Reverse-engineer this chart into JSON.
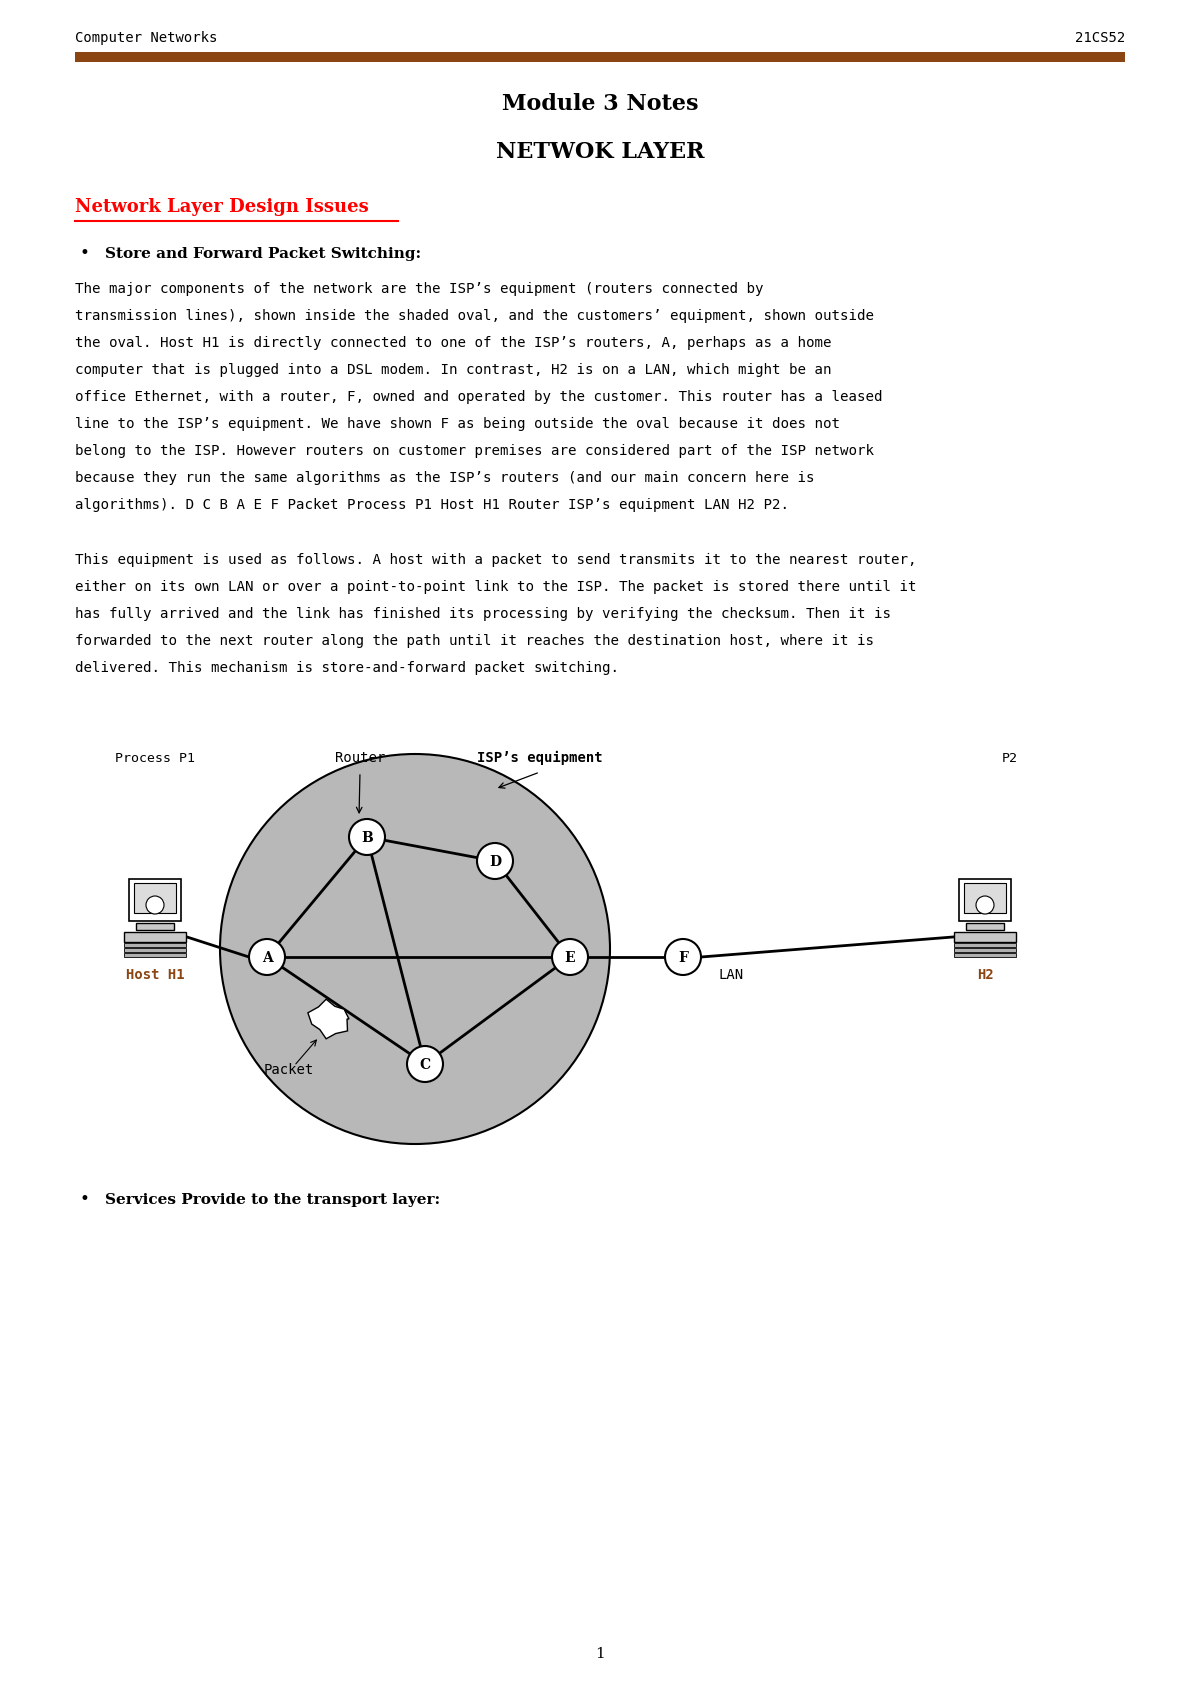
{
  "header_left": "Computer Networks",
  "header_right": "21CS52",
  "header_line_color": "#8B4513",
  "title1": "Module 3 Notes",
  "title2": "NETWOK LAYER",
  "section_heading": "Network Layer Design Issues",
  "section_heading_color": "#FF0000",
  "bullet1_title": "Store and Forward Packet Switching:",
  "bullet2_title": "Services Provide to the transport layer:",
  "page_number": "1",
  "bg_color": "#FFFFFF",
  "text_color": "#000000",
  "oval_color": "#B8B8B8",
  "node_color": "#FFFFFF",
  "diagram_label_router": "Router",
  "diagram_label_isp": "ISP’s equipment",
  "diagram_label_p1": "Process P1",
  "diagram_label_p2": "P2",
  "diagram_label_h1": "Host H1",
  "diagram_label_h2": "H2",
  "diagram_label_lan": "LAN",
  "diagram_label_packet": "Packet",
  "para1_lines": [
    "The major components of the network are the ISP’s equipment (routers connected by",
    "transmission lines), shown inside the shaded oval, and the customers’ equipment, shown outside",
    "the oval. Host H1 is directly connected to one of the ISP’s routers, A, perhaps as a home",
    "computer that is plugged into a DSL modem. In contrast, H2 is on a LAN, which might be an",
    "office Ethernet, with a router, F, owned and operated by the customer. This router has a leased",
    "line to the ISP’s equipment. We have shown F as being outside the oval because it does not",
    "belong to the ISP. However routers on customer premises are considered part of the ISP network",
    "because they run the same algorithms as the ISP’s routers (and our main concern here is",
    "algorithms). D C B A E F Packet Process P1 Host H1 Router ISP’s equipment LAN H2 P2."
  ],
  "para2_lines": [
    "This equipment is used as follows. A host with a packet to send transmits it to the nearest router,",
    "either on its own LAN or over a point-to-point link to the ISP. The packet is stored there until it",
    "has fully arrived and the link has finished its processing by verifying the checksum. Then it is",
    "forwarded to the next router along the path until it reaches the destination host, where it is",
    "delivered. This mechanism is store-and-forward packet switching."
  ]
}
